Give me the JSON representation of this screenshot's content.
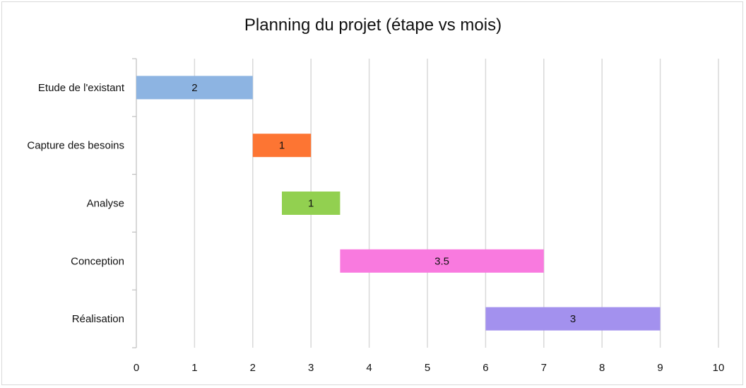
{
  "chart_data": {
    "type": "bar",
    "orientation": "horizontal",
    "stacked_gantt": true,
    "title": "Planning du projet (étape vs mois)",
    "xlabel": "",
    "ylabel": "",
    "xlim": [
      0,
      10
    ],
    "x_ticks": [
      0,
      1,
      2,
      3,
      4,
      5,
      6,
      7,
      8,
      9,
      10
    ],
    "grid": "vertical major gridlines",
    "legend": "none",
    "categories": [
      "Etude de l'existant",
      "Capture des besoins",
      "Analyse",
      "Conception",
      "Réalisation"
    ],
    "start": [
      0,
      2,
      2.5,
      3.5,
      6
    ],
    "duration": [
      2,
      1,
      1,
      3.5,
      3
    ],
    "data_labels": [
      "2",
      "1",
      "1",
      "3.5",
      "3"
    ],
    "colors": [
      "#8db4e2",
      "#fd7533",
      "#92d050",
      "#f97adf",
      "#a391ee"
    ]
  }
}
